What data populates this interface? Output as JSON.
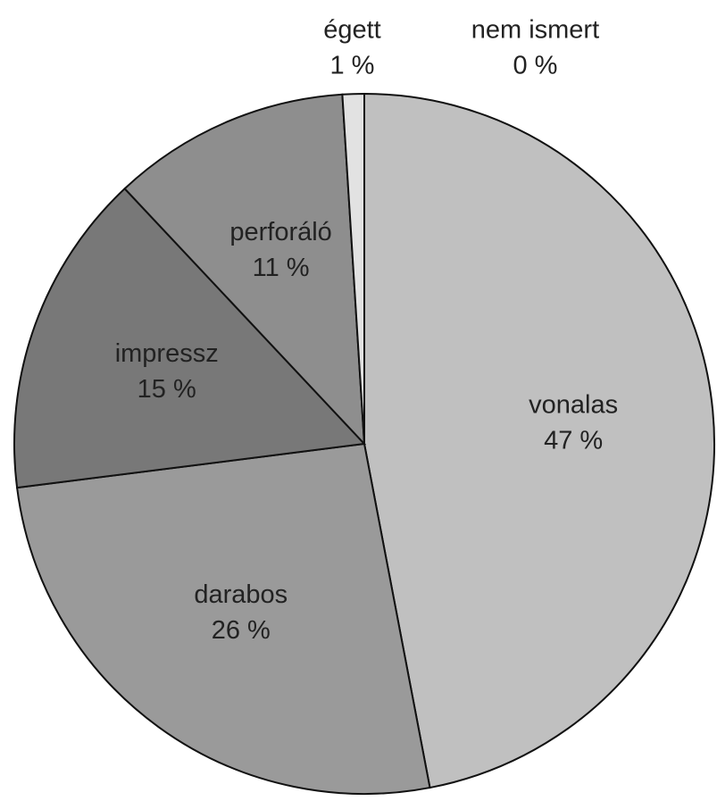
{
  "chart_data": {
    "type": "pie",
    "categories": [
      "vonalas",
      "darabos",
      "impressz",
      "perforáló",
      "égett",
      "nem ismert"
    ],
    "values": [
      47,
      26,
      15,
      11,
      1,
      0
    ],
    "value_labels": [
      "47 %",
      "26 %",
      "15 %",
      "11 %",
      "1 %",
      "0 %"
    ],
    "colors": [
      "#c0c0c0",
      "#9a9a9a",
      "#787878",
      "#8e8e8e",
      "#e2e2e2",
      "#ffffff"
    ]
  }
}
